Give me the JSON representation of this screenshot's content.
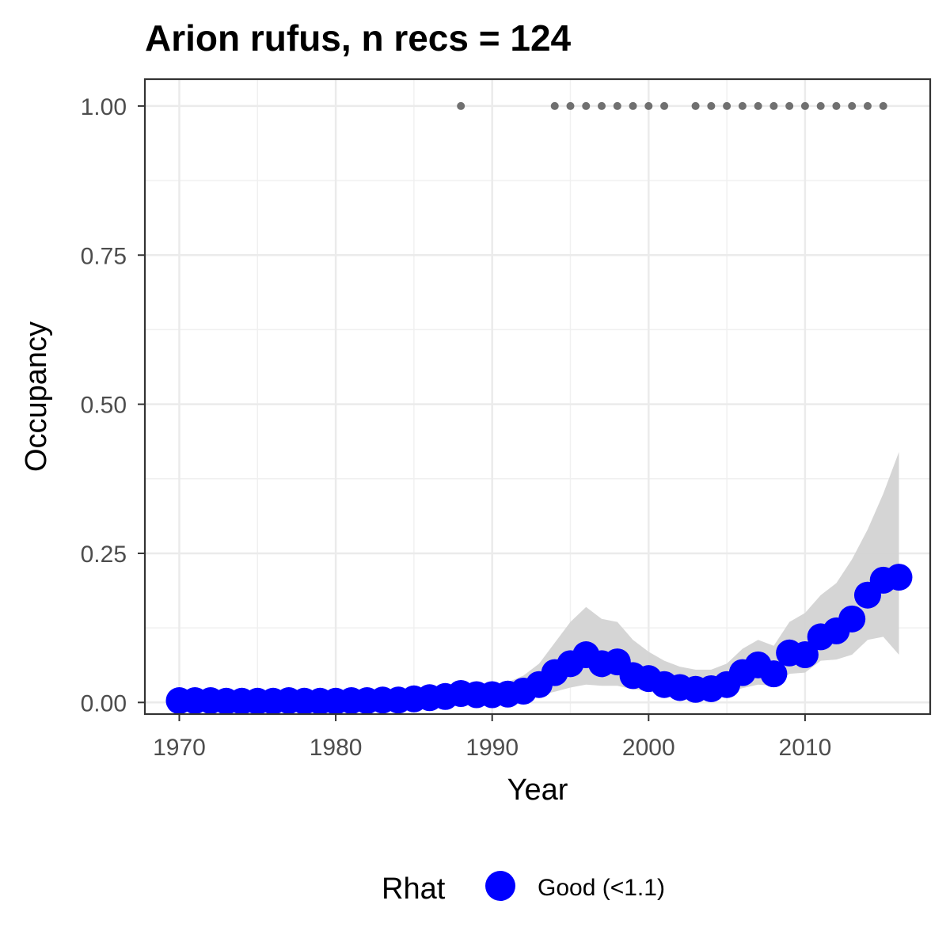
{
  "chart_data": {
    "type": "line",
    "title": "Arion rufus, n recs = 124",
    "xlabel": "Year",
    "ylabel": "Occupancy",
    "xlim": [
      1967.8,
      2018
    ],
    "ylim": [
      -0.0195,
      1.045
    ],
    "xticks": [
      1970,
      1980,
      1990,
      2000,
      2010
    ],
    "yticks": [
      0,
      0.25,
      0.5,
      0.75,
      1
    ],
    "xtick_labels": [
      "1970",
      "1980",
      "1990",
      "2000",
      "2010"
    ],
    "ytick_labels": [
      "0.00",
      "0.25",
      "0.50",
      "0.75",
      "1.00"
    ],
    "grid": true,
    "legend": {
      "position": "bottom",
      "title": "Rhat",
      "entries": [
        {
          "label": "Good (<1.1)",
          "color": "#0000ff"
        }
      ]
    },
    "x": [
      1970,
      1971,
      1972,
      1973,
      1974,
      1975,
      1976,
      1977,
      1978,
      1979,
      1980,
      1981,
      1982,
      1983,
      1984,
      1985,
      1986,
      1987,
      1988,
      1989,
      1990,
      1991,
      1992,
      1993,
      1994,
      1995,
      1996,
      1997,
      1998,
      1999,
      2000,
      2001,
      2002,
      2003,
      2004,
      2005,
      2006,
      2007,
      2008,
      2009,
      2010,
      2011,
      2012,
      2013,
      2014,
      2015,
      2016
    ],
    "series": [
      {
        "name": "Good (<1.1)",
        "color": "#0000ff",
        "values": [
          0.003,
          0.003,
          0.003,
          0.002,
          0.002,
          0.002,
          0.002,
          0.003,
          0.002,
          0.002,
          0.002,
          0.003,
          0.003,
          0.004,
          0.004,
          0.006,
          0.008,
          0.01,
          0.015,
          0.013,
          0.013,
          0.014,
          0.019,
          0.03,
          0.05,
          0.065,
          0.08,
          0.065,
          0.068,
          0.045,
          0.04,
          0.03,
          0.025,
          0.022,
          0.023,
          0.03,
          0.05,
          0.063,
          0.048,
          0.083,
          0.08,
          0.11,
          0.12,
          0.14,
          0.18,
          0.205,
          0.21
        ]
      }
    ],
    "ci_band": {
      "color": "#d3d3d3",
      "lower": [
        0.0005,
        0.0005,
        0.0005,
        0.0005,
        0.0005,
        0.0005,
        0.0005,
        0.0005,
        0.0005,
        0.0005,
        0.0005,
        0.0005,
        0.0005,
        0.0005,
        0.0005,
        0.001,
        0.002,
        0.003,
        0.005,
        0.005,
        0.005,
        0.006,
        0.008,
        0.012,
        0.018,
        0.025,
        0.03,
        0.028,
        0.028,
        0.022,
        0.02,
        0.016,
        0.014,
        0.013,
        0.013,
        0.016,
        0.024,
        0.03,
        0.028,
        0.048,
        0.05,
        0.07,
        0.072,
        0.08,
        0.105,
        0.11,
        0.08
      ],
      "upper": [
        0.008,
        0.008,
        0.008,
        0.007,
        0.007,
        0.007,
        0.007,
        0.008,
        0.007,
        0.007,
        0.007,
        0.008,
        0.008,
        0.01,
        0.011,
        0.014,
        0.017,
        0.02,
        0.026,
        0.028,
        0.03,
        0.034,
        0.045,
        0.065,
        0.1,
        0.135,
        0.16,
        0.14,
        0.135,
        0.105,
        0.085,
        0.07,
        0.06,
        0.055,
        0.055,
        0.065,
        0.09,
        0.105,
        0.095,
        0.135,
        0.15,
        0.18,
        0.2,
        0.24,
        0.29,
        0.35,
        0.42
      ]
    },
    "record_points": {
      "color": "#707070",
      "y": 1,
      "x": [
        1988,
        1994,
        1995,
        1996,
        1997,
        1998,
        1999,
        2000,
        2001,
        2003,
        2004,
        2005,
        2006,
        2007,
        2008,
        2009,
        2010,
        2011,
        2012,
        2013,
        2014,
        2015
      ]
    }
  }
}
